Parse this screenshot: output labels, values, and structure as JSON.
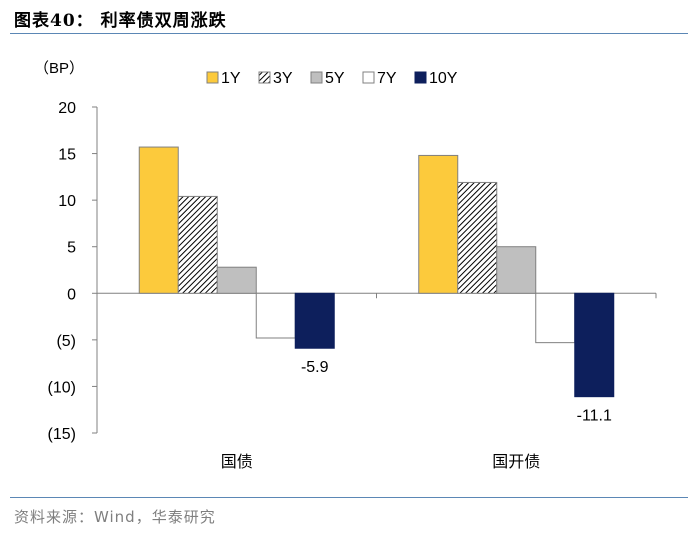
{
  "header": {
    "title": "图表40：   利率债双周涨跌"
  },
  "footer": {
    "source": "资料来源：Wind，华泰研究"
  },
  "colors": {
    "accent_rule": "#5b87b5",
    "1Y": "#fcca3c",
    "3Y": "hatch",
    "5Y": "#bfbfbf",
    "7Y": "#ffffff",
    "10Y": "#0d1f5c"
  },
  "chart_data": {
    "type": "bar",
    "unit_label": "（BP）",
    "categories": [
      "国债",
      "国开债"
    ],
    "series": [
      {
        "name": "1Y",
        "values": [
          15.7,
          14.8
        ]
      },
      {
        "name": "3Y",
        "values": [
          10.4,
          11.9
        ]
      },
      {
        "name": "5Y",
        "values": [
          2.8,
          5.0
        ]
      },
      {
        "name": "7Y",
        "values": [
          -4.8,
          -5.3
        ]
      },
      {
        "name": "10Y",
        "values": [
          -5.9,
          -11.1
        ]
      }
    ],
    "data_labels": [
      {
        "series": "10Y",
        "category": "国债",
        "text": "-5.9"
      },
      {
        "series": "10Y",
        "category": "国开债",
        "text": "-11.1"
      }
    ],
    "ylim": [
      -15,
      20
    ],
    "yticks": [
      20,
      15,
      10,
      5,
      0,
      -5,
      -10,
      -15
    ],
    "ytick_labels": [
      "20",
      "15",
      "10",
      "5",
      "0",
      "(5)",
      "(10)",
      "(15)"
    ],
    "legend_position": "top",
    "grid": false
  }
}
